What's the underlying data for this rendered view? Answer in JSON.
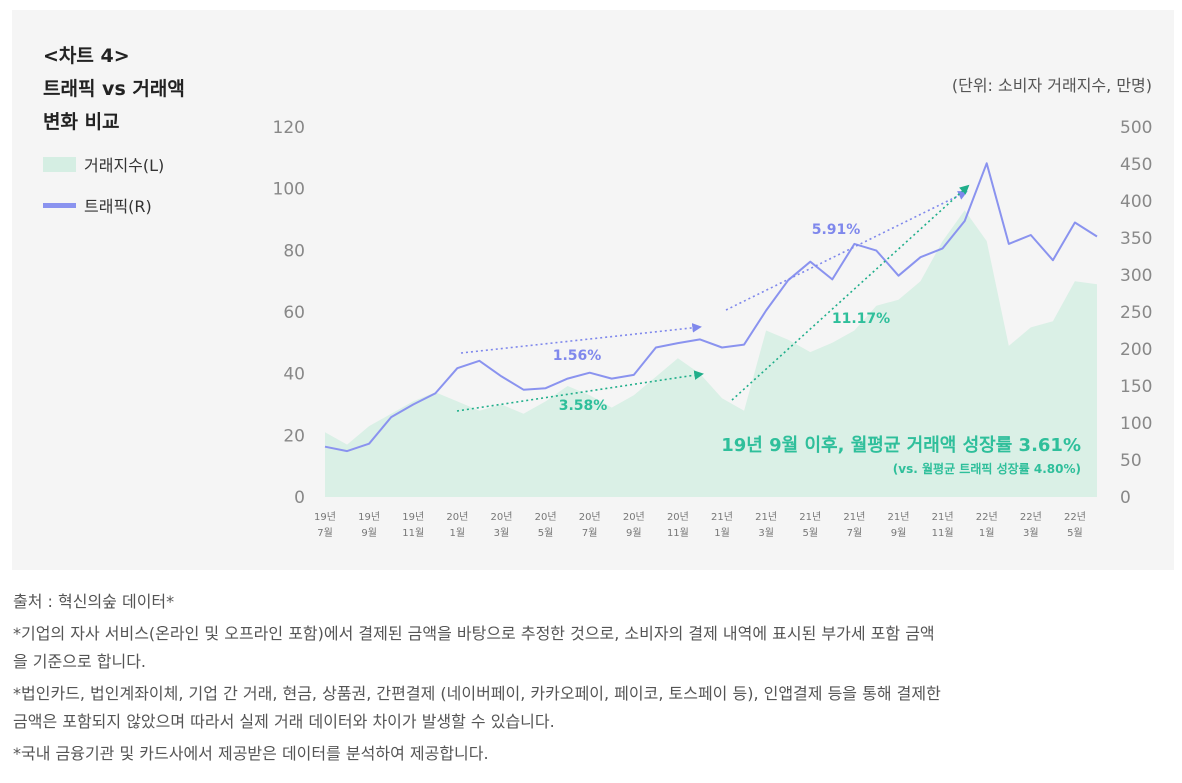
{
  "title_lines": [
    "<차트 4>",
    "트래픽 vs 거래액",
    "변화 비교"
  ],
  "unit_label": "(단위: 소비자 거래지수, 만명)",
  "legend": [
    {
      "label": "거래지수(L)",
      "kind": "area",
      "color": "#d5eee3"
    },
    {
      "label": "트래픽(R)",
      "kind": "line",
      "color": "#8a93ef"
    }
  ],
  "chart_data": {
    "type": "area+line",
    "left_axis": {
      "min": 0,
      "max": 120,
      "ticks": [
        0,
        20,
        40,
        60,
        80,
        100,
        120
      ]
    },
    "right_axis": {
      "min": 0,
      "max": 500,
      "ticks": [
        0,
        50,
        100,
        150,
        200,
        250,
        300,
        350,
        400,
        450,
        500
      ]
    },
    "x_tick_labels": [
      [
        "19년",
        "7월"
      ],
      [
        "19년",
        "9월"
      ],
      [
        "19년",
        "11월"
      ],
      [
        "20년",
        "1월"
      ],
      [
        "20년",
        "3월"
      ],
      [
        "20년",
        "5월"
      ],
      [
        "20년",
        "7월"
      ],
      [
        "20년",
        "9월"
      ],
      [
        "20년",
        "11월"
      ],
      [
        "21년",
        "1월"
      ],
      [
        "21년",
        "3월"
      ],
      [
        "21년",
        "5월"
      ],
      [
        "21년",
        "7월"
      ],
      [
        "21년",
        "9월"
      ],
      [
        "21년",
        "11월"
      ],
      [
        "22년",
        "1월"
      ],
      [
        "22년",
        "3월"
      ],
      [
        "22년",
        "5월"
      ]
    ],
    "series": [
      {
        "name": "거래지수(L)",
        "axis": "left",
        "kind": "area",
        "color": "#d5eee3",
        "values": [
          21,
          17,
          23,
          27,
          31,
          34,
          31,
          28,
          30,
          27,
          31,
          36,
          33,
          29,
          33,
          39,
          45,
          40,
          32,
          28,
          54,
          51,
          47,
          50,
          54,
          62,
          64,
          70,
          83,
          93,
          83,
          49,
          55,
          57,
          70,
          69
        ]
      },
      {
        "name": "트래픽(R)",
        "axis": "right",
        "kind": "line",
        "color": "#8a93ef",
        "values": [
          68,
          62,
          72,
          108,
          125,
          140,
          174,
          184,
          163,
          145,
          147,
          160,
          168,
          160,
          165,
          202,
          208,
          213,
          202,
          206,
          252,
          293,
          318,
          294,
          342,
          333,
          299,
          324,
          336,
          373,
          451,
          342,
          354,
          320,
          371,
          352
        ]
      }
    ],
    "annotations": [
      {
        "text": "5.91%",
        "color": "#7f88ec"
      },
      {
        "text": "1.56%",
        "color": "#7f88ec"
      },
      {
        "text": "11.17%",
        "color": "#2fbf9b"
      },
      {
        "text": "3.58%",
        "color": "#2fbf9b"
      }
    ],
    "callout": {
      "main": "19년 9월 이후, 월평균 거래액 성장률 3.61%",
      "sub": "(vs. 월평균 트래픽 성장률 4.80%)",
      "color": "#2fbf9b"
    }
  },
  "notes": [
    "출처 : 혁신의숲 데이터*",
    "*기업의 자사 서비스(온라인 및 오프라인 포함)에서 결제된 금액을 바탕으로 추정한 것으로, 소비자의 결제 내역에 표시된 부가세 포함 금액",
    "을 기준으로 합니다.",
    "*법인카드, 법인계좌이체, 기업 간 거래, 현금, 상품권, 간편결제 (네이버페이, 카카오페이, 페이코, 토스페이 등), 인앱결제 등을 통해 결제한",
    "금액은 포함되지 않았으며 따라서 실제 거래 데이터와 차이가 발생할 수 있습니다.",
    "*국내 금융기관 및 카드사에서 제공받은 데이터를 분석하여 제공합니다."
  ]
}
